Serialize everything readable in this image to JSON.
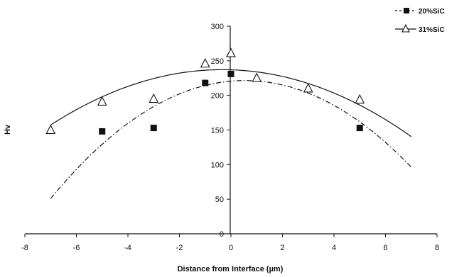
{
  "chart_data": {
    "type": "scatter",
    "title": "",
    "xlabel": "Distance from Interface (µm)",
    "ylabel": "Hv",
    "xlim": [
      -8,
      8
    ],
    "ylim": [
      0,
      300
    ],
    "xticks": [
      -8,
      -6,
      -4,
      -2,
      0,
      2,
      4,
      6,
      8
    ],
    "yticks": [
      0,
      50,
      100,
      150,
      200,
      250,
      300
    ],
    "grid": false,
    "legend_position": "top-right",
    "series": [
      {
        "name": "20%SiC",
        "marker": "filled-square",
        "line_style": "dash-dot",
        "points": [
          {
            "x": -5,
            "y": 148
          },
          {
            "x": -3,
            "y": 153
          },
          {
            "x": -1,
            "y": 218
          },
          {
            "x": 0,
            "y": 231
          },
          {
            "x": 5,
            "y": 153
          }
        ],
        "trend_quadratic": {
          "a": -3.0,
          "b": 3.25,
          "c": 220.6,
          "x_range": [
            -7,
            7
          ]
        }
      },
      {
        "name": "31%SiC",
        "marker": "open-triangle",
        "line_style": "solid",
        "points": [
          {
            "x": -7,
            "y": 150
          },
          {
            "x": -5,
            "y": 191
          },
          {
            "x": -3,
            "y": 195
          },
          {
            "x": -1,
            "y": 246
          },
          {
            "x": 0,
            "y": 261
          },
          {
            "x": 1,
            "y": 225
          },
          {
            "x": 3,
            "y": 210
          },
          {
            "x": 5,
            "y": 194
          }
        ],
        "trend_quadratic": {
          "a": -1.8,
          "b": -1.2,
          "c": 237.0,
          "x_range": [
            -7,
            7
          ]
        }
      }
    ]
  }
}
